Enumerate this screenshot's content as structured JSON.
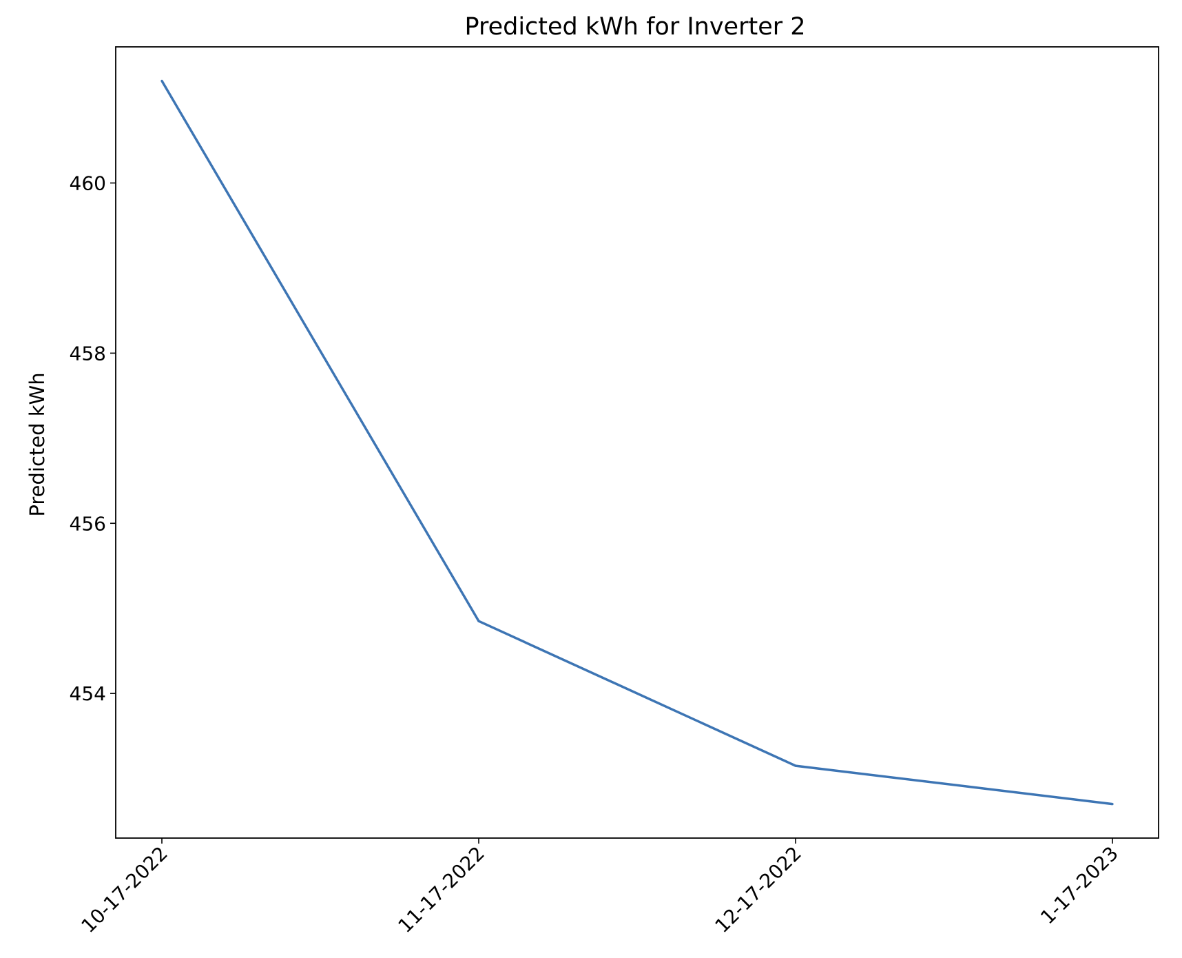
{
  "chart_data": {
    "type": "line",
    "title": "Predicted kWh for Inverter 2",
    "xlabel": "",
    "ylabel": "Predicted kWh",
    "categories": [
      "10-17-2022",
      "11-17-2022",
      "12-17-2022",
      "1-17-2023"
    ],
    "series": [
      {
        "values": [
          461.2,
          454.85,
          453.15,
          452.7
        ],
        "color": "#3d75b4"
      }
    ],
    "yticks": [
      454,
      456,
      458,
      460
    ],
    "ylim": [
      452.3,
      461.6
    ],
    "grid": false,
    "legend": false
  }
}
